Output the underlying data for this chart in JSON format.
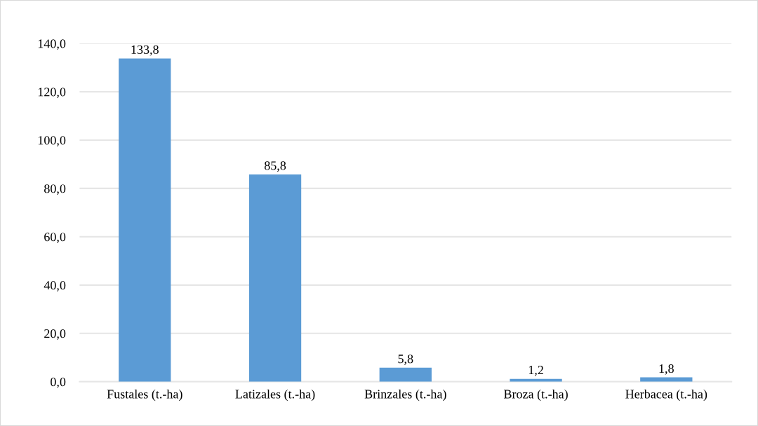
{
  "chart_data": {
    "type": "bar",
    "categories": [
      "Fustales (t.-ha)",
      "Latizales (t.-ha)",
      "Brinzales (t.-ha)",
      "Broza (t.-ha)",
      "Herbacea (t.-ha)"
    ],
    "values": [
      133.8,
      85.8,
      5.8,
      1.2,
      1.8
    ],
    "value_labels": [
      "133,8",
      "85,8",
      "5,8",
      "1,2",
      "1,8"
    ],
    "color": "#5b9bd5",
    "ylim": [
      0,
      140
    ],
    "yticks": [
      {
        "value": 0,
        "label": "0,0"
      },
      {
        "value": 20,
        "label": "20,0"
      },
      {
        "value": 40,
        "label": "40,0"
      },
      {
        "value": 60,
        "label": "60,0"
      },
      {
        "value": 80,
        "label": "80,0"
      },
      {
        "value": 100,
        "label": "100,0"
      },
      {
        "value": 120,
        "label": "120,0"
      },
      {
        "value": 140,
        "label": "140,0"
      }
    ],
    "grid": "y"
  }
}
